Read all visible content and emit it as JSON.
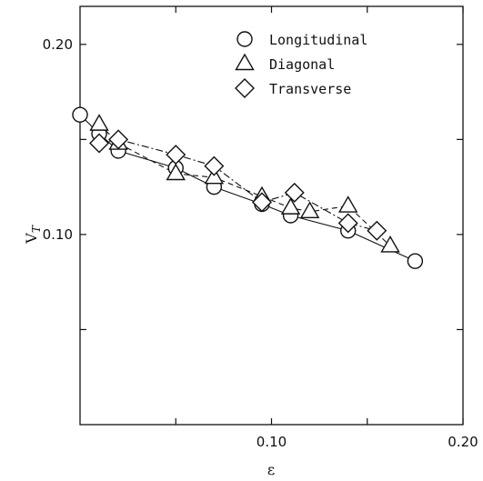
{
  "chart_data": {
    "type": "line",
    "title": "",
    "xlabel": "ε",
    "ylabel": "V_T",
    "xlim": [
      0,
      0.2
    ],
    "ylim": [
      0,
      0.22
    ],
    "grid": false,
    "legend_position": "top-right",
    "x_tick_labels": [
      {
        "value": 0.1,
        "label": "0.10"
      },
      {
        "value": 0.2,
        "label": "0.20"
      }
    ],
    "y_tick_labels": [
      {
        "value": 0.1,
        "label": "0.10"
      },
      {
        "value": 0.2,
        "label": "0.20"
      }
    ],
    "x_minor_ticks": [
      0.05,
      0.15
    ],
    "y_minor_ticks": [
      0.05,
      0.15
    ],
    "series": [
      {
        "name": "Longitudinal",
        "marker": "circle",
        "line_style": "solid",
        "x": [
          0.0,
          0.01,
          0.02,
          0.05,
          0.07,
          0.095,
          0.11,
          0.14,
          0.175
        ],
        "y": [
          0.163,
          0.153,
          0.144,
          0.135,
          0.125,
          0.116,
          0.11,
          0.102,
          0.086
        ]
      },
      {
        "name": "Diagonal",
        "marker": "triangle",
        "line_style": "dashed",
        "x": [
          0.01,
          0.02,
          0.05,
          0.07,
          0.095,
          0.11,
          0.12,
          0.14,
          0.162
        ],
        "y": [
          0.158,
          0.148,
          0.132,
          0.13,
          0.12,
          0.114,
          0.112,
          0.115,
          0.094
        ]
      },
      {
        "name": "Transverse",
        "marker": "diamond",
        "line_style": "dashdot",
        "x": [
          0.01,
          0.02,
          0.05,
          0.07,
          0.095,
          0.112,
          0.14,
          0.155
        ],
        "y": [
          0.148,
          0.15,
          0.142,
          0.136,
          0.117,
          0.122,
          0.106,
          0.102
        ]
      }
    ]
  }
}
